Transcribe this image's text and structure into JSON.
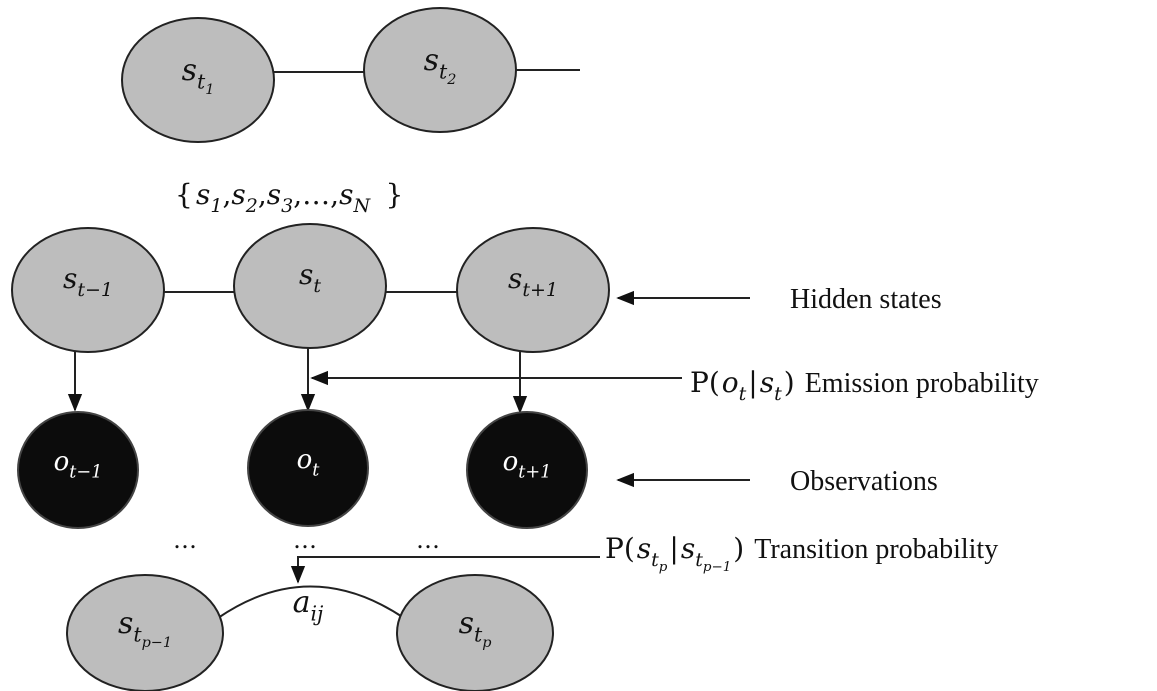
{
  "top_chain": [
    {
      "text": "s",
      "sub": "t",
      "subsub": "1"
    },
    {
      "text": "s",
      "sub": "t",
      "subsub": "2"
    }
  ],
  "state_set": {
    "open": "{",
    "separator": ",",
    "close": "}",
    "items": [
      {
        "text": "s",
        "sub": "1"
      },
      {
        "text": "s",
        "sub": "2"
      },
      {
        "text": "s",
        "sub": "3"
      },
      {
        "text": "…"
      },
      {
        "text": "s",
        "sub": "N"
      }
    ]
  },
  "hidden_states": [
    {
      "text": "s",
      "sub": "t−1"
    },
    {
      "text": "s",
      "sub": "t"
    },
    {
      "text": "s",
      "sub": "t+1"
    }
  ],
  "observations": [
    {
      "text": "o",
      "sub": "t−1"
    },
    {
      "text": "o",
      "sub": "t"
    },
    {
      "text": "o",
      "sub": "t+1"
    }
  ],
  "ellipses": [
    "…",
    "…",
    "…"
  ],
  "bottom_chain": [
    {
      "text": "s",
      "sub": "t",
      "subsub": "p−1"
    },
    {
      "text": "s",
      "sub": "t",
      "subsub": "p"
    }
  ],
  "transition_symbol": [
    {
      "text": "a",
      "sub": "ij"
    }
  ],
  "labels": {
    "hidden": "Hidden states",
    "observations": "Observations",
    "emission": {
      "formula": [
        {
          "text": "P("
        },
        {
          "text": "o",
          "sub": "t"
        },
        {
          "text": "|"
        },
        {
          "text": "s",
          "sub": "t"
        },
        {
          "text": ")"
        }
      ],
      "text": "Emission probability"
    },
    "transition": {
      "formula": [
        {
          "text": "P("
        },
        {
          "text": "s",
          "sub": "t",
          "subsub": "p"
        },
        {
          "text": "|"
        },
        {
          "text": "s",
          "sub": "t",
          "subsub": "p−1"
        },
        {
          "text": ")"
        }
      ],
      "text": "Transition probability"
    }
  }
}
